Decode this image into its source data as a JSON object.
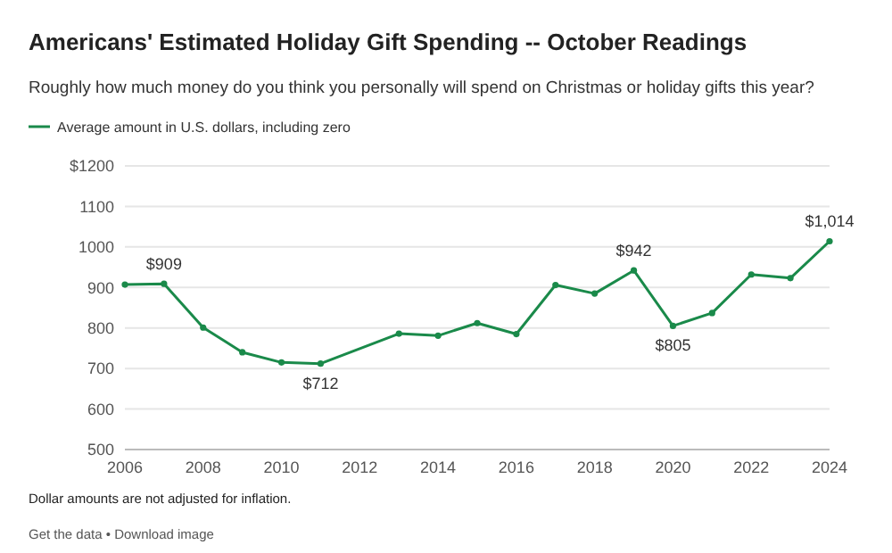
{
  "chart_data": {
    "type": "line",
    "title": "Americans' Estimated Holiday Gift Spending -- October Readings",
    "subtitle": "Roughly how much money do you think you personally will spend on Christmas or holiday gifts this year?",
    "x": [
      2006,
      2007,
      2008,
      2009,
      2010,
      2011,
      2013,
      2014,
      2015,
      2016,
      2017,
      2018,
      2019,
      2020,
      2021,
      2022,
      2023,
      2024
    ],
    "series": [
      {
        "name": "Average amount in U.S. dollars, including zero",
        "color": "#1a8a4a",
        "values": [
          907,
          909,
          801,
          740,
          715,
          712,
          786,
          781,
          812,
          785,
          906,
          885,
          942,
          805,
          837,
          932,
          923,
          1014
        ],
        "value_labels": [
          null,
          "$909",
          null,
          null,
          null,
          "$712",
          null,
          null,
          null,
          null,
          null,
          null,
          "$942",
          "$805",
          null,
          null,
          null,
          "$1,014"
        ]
      }
    ],
    "xlim": [
      2006,
      2024
    ],
    "xticks": [
      2006,
      2008,
      2010,
      2012,
      2014,
      2016,
      2018,
      2020,
      2022,
      2024
    ],
    "ylim": [
      500,
      1200
    ],
    "yticks": [
      500,
      600,
      700,
      800,
      900,
      1000,
      1100,
      {
        "value": 1200,
        "label": "$1200"
      }
    ],
    "grid": "y",
    "legend": "top left",
    "marker": "circle",
    "line_style": "solid",
    "annotations": [
      "Dollar amounts are not adjusted for inflation.",
      "Get the data • Download image"
    ]
  }
}
